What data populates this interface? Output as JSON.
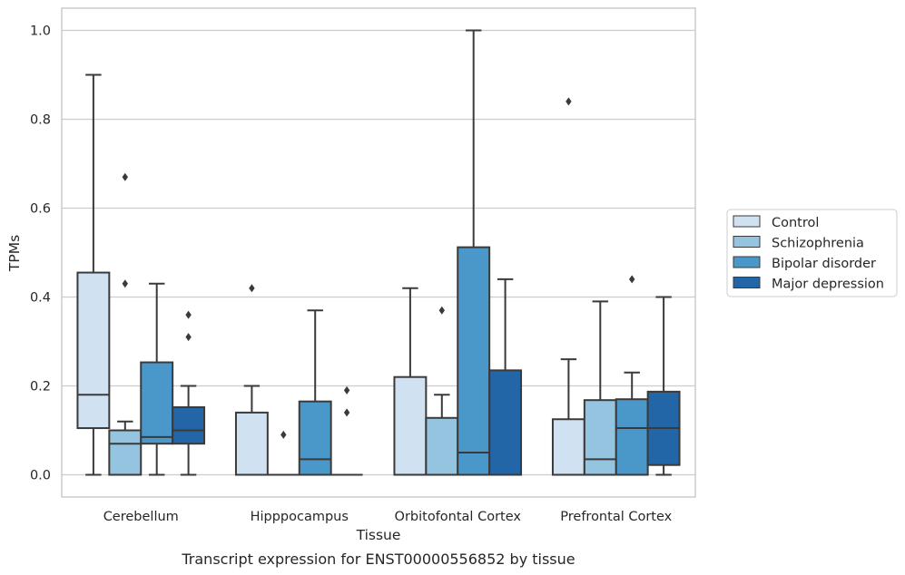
{
  "chart_data": {
    "type": "boxplot",
    "xlabel": "Tissue",
    "ylabel": "TPMs",
    "caption": "Transcript expression for ENST00000556852 by tissue",
    "ylim": [
      -0.05,
      1.05
    ],
    "yticks": [
      0.0,
      0.2,
      0.4,
      0.6,
      0.8,
      1.0
    ],
    "ytick_labels": [
      "0.0",
      "0.2",
      "0.4",
      "0.6",
      "0.8",
      "1.0"
    ],
    "grid": "horizontal",
    "legend_position": "right",
    "categories": [
      "Cerebellum",
      "Hipppocampus",
      "Orbitofontal Cortex",
      "Prefrontal Cortex"
    ],
    "series": [
      {
        "name": "Control",
        "color": "#d0e1f2",
        "boxes": [
          {
            "whislo": 0.0,
            "q1": 0.105,
            "med": 0.18,
            "q3": 0.455,
            "whishi": 0.9,
            "fliers": []
          },
          {
            "whislo": 0.0,
            "q1": 0.0,
            "med": 0.0,
            "q3": 0.14,
            "whishi": 0.2,
            "fliers": [
              0.42
            ]
          },
          {
            "whislo": 0.0,
            "q1": 0.0,
            "med": 0.0,
            "q3": 0.22,
            "whishi": 0.42,
            "fliers": []
          },
          {
            "whislo": 0.0,
            "q1": 0.0,
            "med": 0.0,
            "q3": 0.125,
            "whishi": 0.26,
            "fliers": [
              0.84
            ]
          }
        ]
      },
      {
        "name": "Schizophrenia",
        "color": "#94c4df",
        "boxes": [
          {
            "whislo": 0.0,
            "q1": 0.0,
            "med": 0.07,
            "q3": 0.1,
            "whishi": 0.12,
            "fliers": [
              0.43,
              0.67
            ]
          },
          {
            "whislo": 0.0,
            "q1": 0.0,
            "med": 0.0,
            "q3": 0.0,
            "whishi": 0.0,
            "fliers": [
              0.09
            ]
          },
          {
            "whislo": 0.0,
            "q1": 0.0,
            "med": 0.0,
            "q3": 0.128,
            "whishi": 0.18,
            "fliers": [
              0.37
            ]
          },
          {
            "whislo": 0.0,
            "q1": 0.0,
            "med": 0.035,
            "q3": 0.168,
            "whishi": 0.39,
            "fliers": []
          }
        ]
      },
      {
        "name": "Bipolar disorder",
        "color": "#4a98c9",
        "boxes": [
          {
            "whislo": 0.0,
            "q1": 0.07,
            "med": 0.085,
            "q3": 0.253,
            "whishi": 0.43,
            "fliers": []
          },
          {
            "whislo": 0.0,
            "q1": 0.0,
            "med": 0.035,
            "q3": 0.165,
            "whishi": 0.37,
            "fliers": []
          },
          {
            "whislo": 0.0,
            "q1": 0.0,
            "med": 0.05,
            "q3": 0.512,
            "whishi": 1.0,
            "fliers": []
          },
          {
            "whislo": 0.0,
            "q1": 0.0,
            "med": 0.105,
            "q3": 0.17,
            "whishi": 0.23,
            "fliers": [
              0.44
            ]
          }
        ]
      },
      {
        "name": "Major depression",
        "color": "#2366a8",
        "boxes": [
          {
            "whislo": 0.0,
            "q1": 0.07,
            "med": 0.1,
            "q3": 0.152,
            "whishi": 0.2,
            "fliers": [
              0.31,
              0.36
            ]
          },
          {
            "whislo": 0.0,
            "q1": 0.0,
            "med": 0.0,
            "q3": 0.0,
            "whishi": 0.0,
            "fliers": [
              0.14,
              0.19
            ]
          },
          {
            "whislo": 0.0,
            "q1": 0.0,
            "med": 0.0,
            "q3": 0.235,
            "whishi": 0.44,
            "fliers": []
          },
          {
            "whislo": 0.0,
            "q1": 0.022,
            "med": 0.105,
            "q3": 0.187,
            "whishi": 0.4,
            "fliers": []
          }
        ]
      }
    ]
  }
}
